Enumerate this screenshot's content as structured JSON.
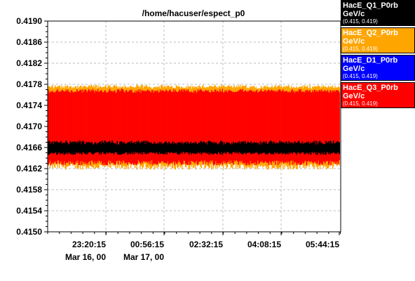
{
  "chart_data": {
    "type": "line",
    "title": "/home/hacuser/espect_p0",
    "xlabel": "",
    "ylabel": "",
    "ylim": [
      0.415,
      0.419
    ],
    "yticks": [
      "0.4190",
      "0.4186",
      "0.4182",
      "0.4178",
      "0.4174",
      "0.4170",
      "0.4166",
      "0.4162",
      "0.4158",
      "0.4154",
      "0.4150"
    ],
    "xlim": [
      "2000-03-16 21:44",
      "2000-03-17 05:44:15"
    ],
    "xticks": [
      {
        "time": "23:20:15",
        "date": "Mar 16, 00"
      },
      {
        "time": "00:56:15",
        "date": "Mar 17, 00"
      },
      {
        "time": "02:32:15",
        "date": ""
      },
      {
        "time": "04:08:15",
        "date": ""
      },
      {
        "time": "05:44:15",
        "date": ""
      }
    ],
    "grid": true,
    "legend_position": "right",
    "series": [
      {
        "name": "HacE_Q1_P0rb",
        "unit": "GeV/c",
        "range": "(0.415, 0.419)",
        "color": "#000000",
        "band": [
          0.4165,
          0.41668
        ],
        "spread": [
          0.41646,
          0.41674
        ]
      },
      {
        "name": "HacE_Q2_P0rb",
        "unit": "GeV/c",
        "range": "(0.415, 0.419)",
        "color": "#ffa500",
        "band": [
          0.41628,
          0.41774
        ],
        "spread": [
          0.41618,
          0.4178
        ]
      },
      {
        "name": "HacE_D1_P0rb",
        "unit": "GeV/c",
        "range": "(0.415, 0.419)",
        "color": "#0000ff",
        "band": null,
        "spread": null
      },
      {
        "name": "HacE_Q3_P0rb",
        "unit": "GeV/c",
        "range": "(0.415, 0.419)",
        "color": "#ff0000",
        "band": [
          0.41634,
          0.41766
        ],
        "spread": [
          0.41626,
          0.41772
        ]
      }
    ]
  }
}
